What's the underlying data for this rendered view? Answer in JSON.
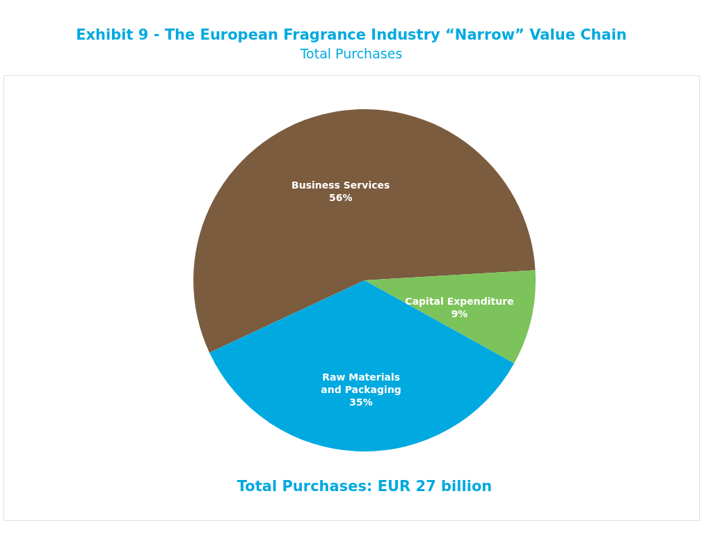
{
  "chart_data": {
    "type": "pie",
    "title": "Exhibit 9 - The European Fragrance Industry “Narrow” Value Chain",
    "subtitle": "Total Purchases",
    "categories": [
      "Business Services",
      "Capital Expenditure",
      "Raw Materials and Packaging"
    ],
    "values": [
      56,
      9,
      35
    ],
    "colors": [
      "#7b5c3f",
      "#7dc35b",
      "#00a9e0"
    ],
    "value_labels": [
      "56%",
      "9%",
      "35%"
    ],
    "annotations": [
      "Total Purchases: EUR 27 billion"
    ],
    "legend": false
  }
}
